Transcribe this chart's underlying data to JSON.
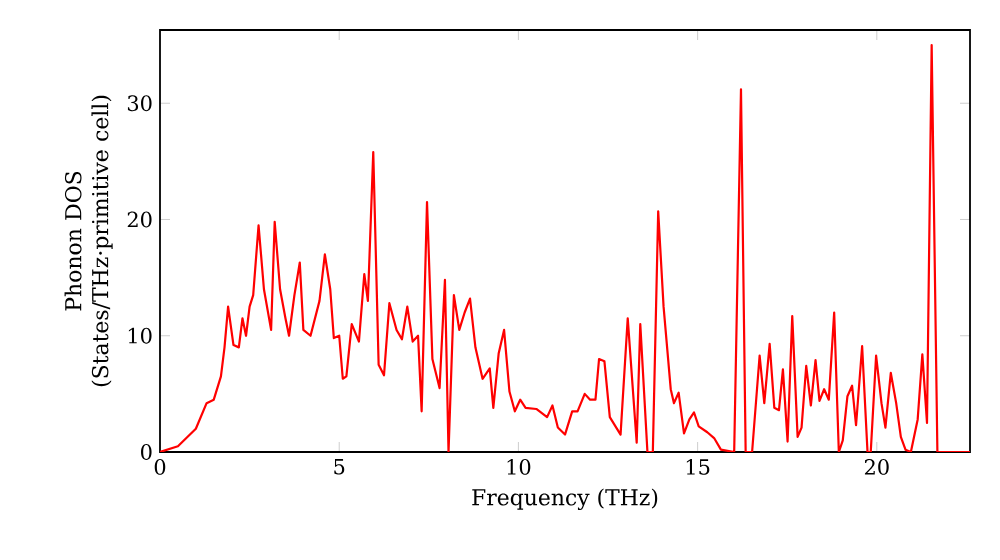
{
  "chart_data": {
    "type": "line",
    "xlabel": "Frequency (THz)",
    "ylabel": "Phonon DOS (States/THz·primitive cell)",
    "color": "#ff0000",
    "xlim": [
      0,
      22.6
    ],
    "ylim": [
      0,
      36.3
    ],
    "xticks": [
      0,
      5,
      10,
      15,
      20
    ],
    "yticks": [
      0,
      10,
      20,
      30
    ],
    "x": [
      0,
      0.5,
      1.0,
      1.3,
      1.5,
      1.7,
      1.8,
      1.9,
      2.05,
      2.2,
      2.3,
      2.4,
      2.5,
      2.6,
      2.75,
      2.9,
      3.1,
      3.2,
      3.35,
      3.5,
      3.6,
      3.75,
      3.9,
      4.0,
      4.2,
      4.45,
      4.6,
      4.75,
      4.85,
      5.0,
      5.1,
      5.2,
      5.35,
      5.55,
      5.7,
      5.8,
      5.95,
      6.1,
      6.25,
      6.4,
      6.6,
      6.75,
      6.9,
      7.05,
      7.2,
      7.3,
      7.45,
      7.6,
      7.8,
      7.95,
      8.05,
      8.2,
      8.35,
      8.5,
      8.65,
      8.8,
      9.0,
      9.2,
      9.3,
      9.45,
      9.6,
      9.75,
      9.9,
      10.05,
      10.2,
      10.5,
      10.8,
      10.95,
      11.1,
      11.3,
      11.5,
      11.65,
      11.85,
      12.0,
      12.15,
      12.25,
      12.4,
      12.55,
      12.85,
      13.05,
      13.3,
      13.4,
      13.6,
      13.75,
      13.9,
      14.05,
      14.25,
      14.34,
      14.47,
      14.62,
      14.77,
      14.9,
      15.03,
      15.27,
      15.46,
      15.65,
      16.02,
      16.21,
      16.34,
      16.52,
      16.73,
      16.86,
      17.01,
      17.14,
      17.27,
      17.38,
      17.51,
      17.64,
      17.79,
      17.9,
      18.03,
      18.16,
      18.29,
      18.4,
      18.53,
      18.66,
      18.81,
      18.94,
      19.05,
      19.18,
      19.31,
      19.42,
      19.59,
      19.74,
      19.83,
      19.98,
      20.13,
      20.24,
      20.39,
      20.54,
      20.67,
      20.8,
      20.95,
      21.14,
      21.27,
      21.4,
      21.53,
      21.69,
      22.6
    ],
    "values": [
      0,
      0.5,
      2,
      4.2,
      4.5,
      6.5,
      9,
      12.5,
      9.2,
      9,
      11.5,
      10,
      12.5,
      13.5,
      19.5,
      14,
      10.5,
      19.8,
      14,
      11.5,
      10,
      13.5,
      16.3,
      10.5,
      10,
      13,
      17,
      14,
      9.8,
      10,
      6.3,
      6.5,
      11,
      9.5,
      15.3,
      13,
      25.8,
      7.5,
      6.6,
      12.8,
      10.5,
      9.7,
      12.5,
      9.5,
      10,
      3.5,
      21.5,
      8,
      5.5,
      14.8,
      0,
      13.5,
      10.5,
      12,
      13.2,
      9,
      6.3,
      7.2,
      3.8,
      8.5,
      10.5,
      5.2,
      3.5,
      4.5,
      3.8,
      3.7,
      3,
      4,
      2.1,
      1.5,
      3.5,
      3.5,
      5,
      4.5,
      4.5,
      8,
      7.8,
      3,
      1.5,
      11.5,
      0.8,
      11,
      0,
      0,
      20.7,
      12.5,
      5.4,
      4.2,
      5.1,
      1.6,
      2.8,
      3.4,
      2.2,
      1.7,
      1.2,
      0.2,
      0,
      31.2,
      0,
      0,
      8.3,
      4.2,
      9.3,
      3.8,
      3.6,
      7.1,
      0.9,
      11.7,
      1.3,
      2.1,
      7.4,
      4.0,
      7.9,
      4.4,
      5.4,
      4.5,
      12.0,
      0,
      1.0,
      4.8,
      5.7,
      2.3,
      9.1,
      0,
      0,
      8.3,
      4.2,
      2.1,
      6.8,
      4.2,
      1.3,
      0.2,
      0,
      2.8,
      8.4,
      2.5,
      35,
      0,
      0
    ]
  }
}
